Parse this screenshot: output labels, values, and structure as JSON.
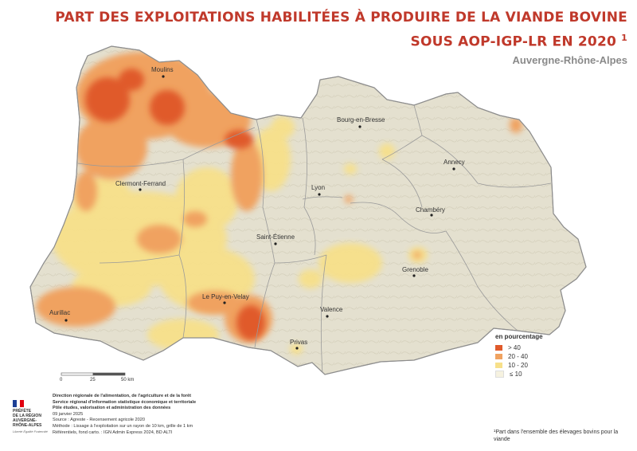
{
  "title": {
    "line1": "PART DES EXPLOITATIONS HABILITÉES À PRODUIRE DE LA VIANDE BOVINE",
    "line2": "SOUS AOP-IGP-LR EN 2020",
    "footnote_mark": "1",
    "subtitle": "Auvergne-Rhône-Alpes"
  },
  "cities": [
    {
      "name": "Moulins"
    },
    {
      "name": "Bourg-en-Bresse"
    },
    {
      "name": "Annecy"
    },
    {
      "name": "Clermont-Ferrand"
    },
    {
      "name": "Lyon"
    },
    {
      "name": "Chambéry"
    },
    {
      "name": "Saint-Étienne"
    },
    {
      "name": "Grenoble"
    },
    {
      "name": "Le Puy-en-Velay"
    },
    {
      "name": "Valence"
    },
    {
      "name": "Aurillac"
    },
    {
      "name": "Privas"
    }
  ],
  "legend": {
    "title": "en pourcentage",
    "items": [
      {
        "label": "> 40",
        "color": "#e05a2b"
      },
      {
        "label": "20 - 40",
        "color": "#f0a260"
      },
      {
        "label": "10 - 20",
        "color": "#f7e08a"
      },
      {
        "label": "≤ 10",
        "color": "#f6f2e0"
      }
    ]
  },
  "scale": {
    "labels": [
      "0",
      "25",
      "50 km"
    ]
  },
  "sources": {
    "line1": "Direction régionale de l'alimentation, de l'agriculture et de la forêt",
    "line2": "Service régional d'information statistique économique et territoriale",
    "line3": "Pôle études, valorisation et administration des données",
    "date": "09 janvier 2025",
    "source": "Source : Agreste - Recensement agricole 2020",
    "method": "Méthode : Lissage à l'exploitation sur un rayon de 10 km, grille de 1 km",
    "refs": "Référentiels, fond carto. : IGN Admin Express 2024, BD ALTI"
  },
  "logo": {
    "line1": "PRÉFÈTE",
    "line2": "DE LA RÉGION",
    "line3": "AUVERGNE-",
    "line4": "RHÔNE-ALPES",
    "motto": "Liberté Égalité Fraternité"
  },
  "footnote": "¹Part dans l'ensemble des élevages bovins pour la viande"
}
